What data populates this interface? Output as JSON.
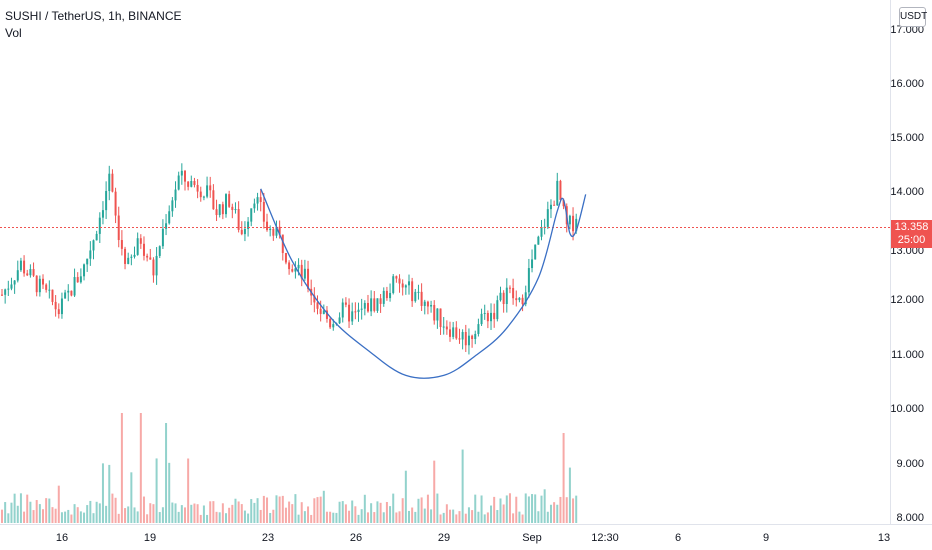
{
  "header": {
    "symbol_line": "SUSHI / TetherUS, 1h, BINANCE",
    "volume_label": "Vol"
  },
  "price_axis": {
    "currency": "USDT",
    "ticks": [
      "17.000",
      "16.000",
      "15.000",
      "14.000",
      "13.000",
      "12.000",
      "11.000",
      "10.000",
      "9.000",
      "8.000"
    ]
  },
  "current_price": {
    "value": "13.358",
    "countdown": "25:00"
  },
  "time_axis": {
    "ticks": [
      "16",
      "19",
      "23",
      "26",
      "29",
      "Sep",
      "12:30",
      "6",
      "9",
      "13"
    ]
  },
  "colors": {
    "up": "#26a69a",
    "down": "#ef5350",
    "up_volume": "#26a69a",
    "down_volume": "#ef5350",
    "pattern_curve": "#3a6fc4",
    "price_line": "#ef5350",
    "axis_text": "#131722"
  },
  "chart_data": {
    "type": "candlestick",
    "y_range": [
      7.9,
      17.2
    ],
    "volume_ticks_hidden": true,
    "annotation": "cup-and-handle curve",
    "price_anchors": [
      {
        "i": 0,
        "p": 12.0
      },
      {
        "i": 6,
        "p": 12.55
      },
      {
        "i": 10,
        "p": 12.25
      },
      {
        "i": 14,
        "p": 12.0
      },
      {
        "i": 18,
        "p": 11.7
      },
      {
        "i": 22,
        "p": 12.1
      },
      {
        "i": 26,
        "p": 12.5
      },
      {
        "i": 30,
        "p": 13.2
      },
      {
        "i": 34,
        "p": 14.1
      },
      {
        "i": 37,
        "p": 13.0
      },
      {
        "i": 40,
        "p": 12.5
      },
      {
        "i": 44,
        "p": 13.0
      },
      {
        "i": 48,
        "p": 12.4
      },
      {
        "i": 52,
        "p": 13.4
      },
      {
        "i": 56,
        "p": 14.1
      },
      {
        "i": 60,
        "p": 14.0
      },
      {
        "i": 64,
        "p": 13.9
      },
      {
        "i": 68,
        "p": 13.5
      },
      {
        "i": 72,
        "p": 13.7
      },
      {
        "i": 76,
        "p": 13.1
      },
      {
        "i": 80,
        "p": 13.8
      },
      {
        "i": 84,
        "p": 13.2
      },
      {
        "i": 88,
        "p": 13.0
      },
      {
        "i": 92,
        "p": 12.5
      },
      {
        "i": 96,
        "p": 12.3
      },
      {
        "i": 100,
        "p": 11.8
      },
      {
        "i": 104,
        "p": 11.5
      },
      {
        "i": 108,
        "p": 11.7
      },
      {
        "i": 112,
        "p": 11.6
      },
      {
        "i": 116,
        "p": 11.8
      },
      {
        "i": 120,
        "p": 11.9
      },
      {
        "i": 124,
        "p": 12.2
      },
      {
        "i": 128,
        "p": 12.1
      },
      {
        "i": 132,
        "p": 12.0
      },
      {
        "i": 136,
        "p": 11.7
      },
      {
        "i": 140,
        "p": 11.5
      },
      {
        "i": 144,
        "p": 11.3
      },
      {
        "i": 148,
        "p": 11.2
      },
      {
        "i": 152,
        "p": 11.6
      },
      {
        "i": 156,
        "p": 11.7
      },
      {
        "i": 160,
        "p": 12.1
      },
      {
        "i": 164,
        "p": 11.8
      },
      {
        "i": 168,
        "p": 12.6
      },
      {
        "i": 172,
        "p": 13.3
      },
      {
        "i": 176,
        "p": 13.9
      },
      {
        "i": 179,
        "p": 13.2
      },
      {
        "i": 182,
        "p": 13.36
      }
    ],
    "cup_curve": [
      {
        "i": 82,
        "p": 13.9
      },
      {
        "i": 92,
        "p": 12.6
      },
      {
        "i": 104,
        "p": 11.6
      },
      {
        "i": 116,
        "p": 11.0
      },
      {
        "i": 128,
        "p": 10.55
      },
      {
        "i": 140,
        "p": 10.55
      },
      {
        "i": 150,
        "p": 10.9
      },
      {
        "i": 160,
        "p": 11.4
      },
      {
        "i": 170,
        "p": 12.3
      },
      {
        "i": 176,
        "p": 13.5
      },
      {
        "i": 178,
        "p": 13.7
      },
      {
        "i": 180,
        "p": 13.1
      },
      {
        "i": 182,
        "p": 13.15
      },
      {
        "i": 185,
        "p": 13.8
      }
    ]
  }
}
